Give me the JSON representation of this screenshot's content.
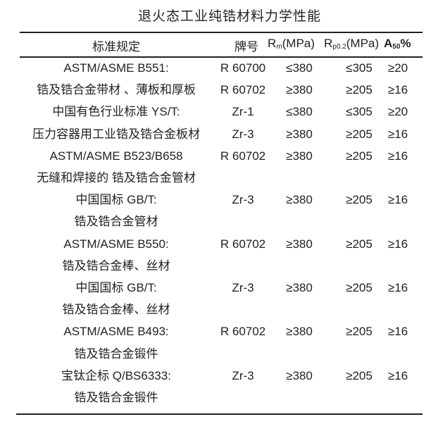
{
  "title": "退火态工业纯锆材料力学性能",
  "header": {
    "standard": "标准规定",
    "grade": "牌号",
    "rm": {
      "base": "R",
      "sub": "m",
      "unit": "(MPa)"
    },
    "rp": {
      "base": "R",
      "sub": "p0.2",
      "unit": "(MPa)"
    },
    "a": {
      "base": "A",
      "sub": "50",
      "unit": "%"
    }
  },
  "rows": [
    {
      "std": "ASTM/ASME  B551:",
      "grade": "R 60700",
      "rm": "≤380",
      "rp": "≤305",
      "a": "≥20"
    },
    {
      "std": "锆及锆合金带材 、薄板和厚板",
      "grade": "R 60702",
      "rm": "≥380",
      "rp": "≥205",
      "a": "≥16"
    },
    {
      "std": "中国有色行业标准 YS/T:",
      "grade": "Zr-1",
      "rm": "≤380",
      "rp": "≤305",
      "a": "≥20"
    },
    {
      "std": "压力容器用工业锆及锆合金板材",
      "grade": "Zr-3",
      "rm": "≥380",
      "rp": "≥205",
      "a": "≥16"
    },
    {
      "std": "ASTM/ASME  B523/B658",
      "grade": "R 60702",
      "rm": "≥380",
      "rp": "≥205",
      "a": "≥16"
    },
    {
      "std": "无缝和焊接的 锆及锆合金管材",
      "grade": "",
      "rm": "",
      "rp": "",
      "a": ""
    },
    {
      "std": "中国国标 GB/T:",
      "grade": "Zr-3",
      "rm": "≥380",
      "rp": "≥205",
      "a": "≥16"
    },
    {
      "std": "锆及锆合金管材",
      "grade": "",
      "rm": "",
      "rp": "",
      "a": ""
    },
    {
      "std": "ASTM/ASME  B550:",
      "grade": "R 60702",
      "rm": "≥380",
      "rp": "≥205",
      "a": "≥16"
    },
    {
      "std": "锆及锆合金棒、丝材",
      "grade": "",
      "rm": "",
      "rp": "",
      "a": ""
    },
    {
      "std": "中国国标 GB/T:",
      "grade": "Zr-3",
      "rm": "≥380",
      "rp": "≥205",
      "a": "≥16"
    },
    {
      "std": "锆及锆合金棒、丝材",
      "grade": "",
      "rm": "",
      "rp": "",
      "a": ""
    },
    {
      "std": "ASTM/ASME  B493:",
      "grade": "R 60702",
      "rm": "≥380",
      "rp": "≥205",
      "a": "≥16"
    },
    {
      "std": "锆及锆合金锻件",
      "grade": "",
      "rm": "",
      "rp": "",
      "a": ""
    },
    {
      "std": "宝钛企标 Q/BS6333:",
      "grade": "Zr-3",
      "rm": "≥380",
      "rp": "≥205",
      "a": "≥16"
    },
    {
      "std": "锆及锆合金锻件",
      "grade": "",
      "rm": "",
      "rp": "",
      "a": ""
    }
  ]
}
